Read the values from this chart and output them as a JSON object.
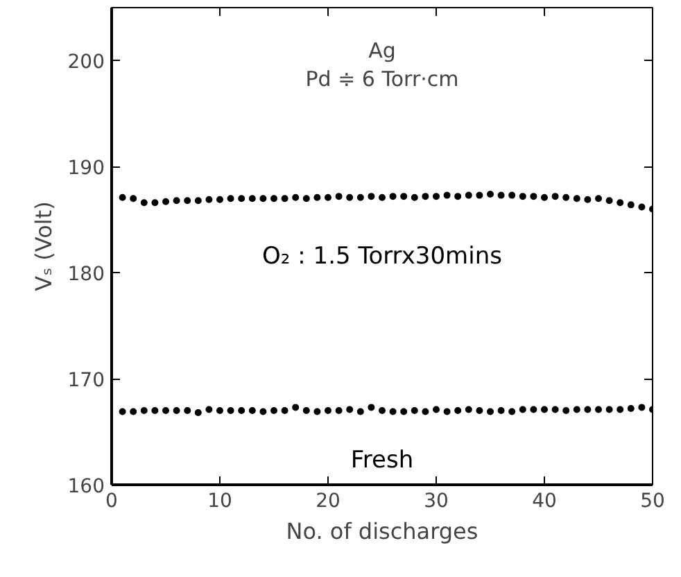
{
  "chart_data": {
    "type": "scatter",
    "xlabel": "No. of discharges",
    "ylabel": "Vₛ (Volt)",
    "annotations": [
      "Ag",
      "Pd ≑ 6 Torr·cm"
    ],
    "x": [
      1,
      2,
      3,
      4,
      5,
      6,
      7,
      8,
      9,
      10,
      11,
      12,
      13,
      14,
      15,
      16,
      17,
      18,
      19,
      20,
      21,
      22,
      23,
      24,
      25,
      26,
      27,
      28,
      29,
      30,
      31,
      32,
      33,
      34,
      35,
      36,
      37,
      38,
      39,
      40,
      41,
      42,
      43,
      44,
      45,
      46,
      47,
      48,
      49,
      50
    ],
    "series": [
      {
        "name": "O₂ : 1.5 Torrx30mins",
        "color": "#000000",
        "values": [
          187.1,
          187.0,
          186.6,
          186.6,
          186.7,
          186.8,
          186.8,
          186.8,
          186.9,
          186.9,
          187.0,
          187.0,
          187.0,
          187.0,
          187.0,
          187.0,
          187.1,
          187.0,
          187.1,
          187.1,
          187.2,
          187.1,
          187.1,
          187.2,
          187.1,
          187.2,
          187.2,
          187.1,
          187.2,
          187.2,
          187.3,
          187.2,
          187.3,
          187.3,
          187.4,
          187.3,
          187.3,
          187.2,
          187.2,
          187.1,
          187.2,
          187.1,
          187.0,
          186.9,
          187.0,
          186.8,
          186.6,
          186.4,
          186.2,
          186.0
        ]
      },
      {
        "name": "Fresh",
        "color": "#000000",
        "values": [
          166.9,
          166.9,
          167.0,
          167.0,
          167.0,
          167.0,
          167.0,
          166.8,
          167.1,
          167.0,
          167.0,
          167.0,
          167.0,
          166.9,
          167.0,
          167.0,
          167.3,
          167.0,
          166.9,
          167.0,
          167.0,
          167.1,
          166.9,
          167.3,
          167.0,
          166.9,
          166.9,
          167.0,
          166.9,
          167.1,
          166.9,
          167.0,
          167.1,
          167.0,
          166.9,
          167.0,
          166.9,
          167.1,
          167.1,
          167.1,
          167.1,
          167.0,
          167.1,
          167.1,
          167.1,
          167.1,
          167.1,
          167.2,
          167.3,
          167.1
        ]
      }
    ],
    "xlim": [
      0,
      50
    ],
    "ylim": [
      160,
      205
    ],
    "xticks": [
      0,
      10,
      20,
      30,
      40,
      50
    ],
    "yticks": [
      160,
      170,
      180,
      190,
      200
    ],
    "marker": "circle",
    "grid": false
  }
}
